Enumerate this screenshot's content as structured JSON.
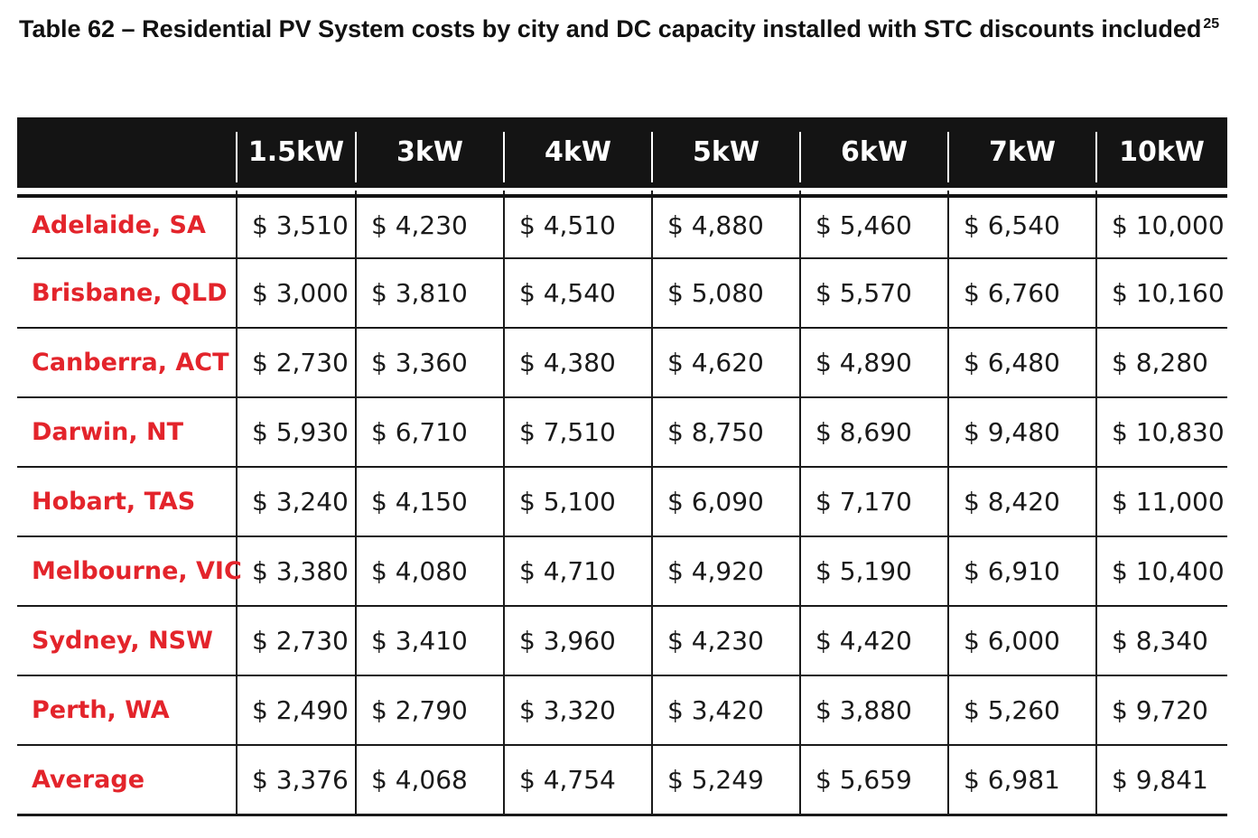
{
  "caption": {
    "text": "Table 62 – Residential PV System costs by city and DC capacity installed with STC discounts included",
    "footnote": "25"
  },
  "table": {
    "columns": [
      "",
      "1.5kW",
      "3kW",
      "4kW",
      "5kW",
      "6kW",
      "7kW",
      "10kW"
    ],
    "rows": [
      {
        "city": "Adelaide, SA",
        "values": [
          "$ 3,510",
          "$ 4,230",
          "$ 4,510",
          "$ 4,880",
          "$ 5,460",
          "$ 6,540",
          "$ 10,000"
        ]
      },
      {
        "city": "Brisbane, QLD",
        "values": [
          "$ 3,000",
          "$ 3,810",
          "$ 4,540",
          "$ 5,080",
          "$ 5,570",
          "$ 6,760",
          "$ 10,160"
        ]
      },
      {
        "city": "Canberra, ACT",
        "values": [
          "$ 2,730",
          "$ 3,360",
          "$ 4,380",
          "$ 4,620",
          "$ 4,890",
          "$ 6,480",
          "$ 8,280"
        ]
      },
      {
        "city": "Darwin, NT",
        "values": [
          "$ 5,930",
          "$ 6,710",
          "$ 7,510",
          "$ 8,750",
          "$ 8,690",
          "$ 9,480",
          "$ 10,830"
        ]
      },
      {
        "city": "Hobart, TAS",
        "values": [
          "$ 3,240",
          "$ 4,150",
          "$ 5,100",
          "$ 6,090",
          "$ 7,170",
          "$ 8,420",
          "$ 11,000"
        ]
      },
      {
        "city": "Melbourne, VIC",
        "values": [
          "$ 3,380",
          "$ 4,080",
          "$ 4,710",
          "$ 4,920",
          "$ 5,190",
          "$ 6,910",
          "$ 10,400"
        ]
      },
      {
        "city": "Sydney, NSW",
        "values": [
          "$ 2,730",
          "$ 3,410",
          "$ 3,960",
          "$ 4,230",
          "$ 4,420",
          "$ 6,000",
          "$ 8,340"
        ]
      },
      {
        "city": "Perth, WA",
        "values": [
          "$ 2,490",
          "$ 2,790",
          "$ 3,320",
          "$ 3,420",
          "$ 3,880",
          "$ 5,260",
          "$ 9,720"
        ]
      },
      {
        "city": "Average",
        "values": [
          "$ 3,376",
          "$ 4,068",
          "$ 4,754",
          "$ 5,249",
          "$ 5,659",
          "$ 6,981",
          "$ 9,841"
        ]
      }
    ]
  },
  "colors": {
    "header_bg": "#141414",
    "header_text": "#ffffff",
    "city_text": "#e3242b",
    "body_text": "#1a1a1a"
  }
}
